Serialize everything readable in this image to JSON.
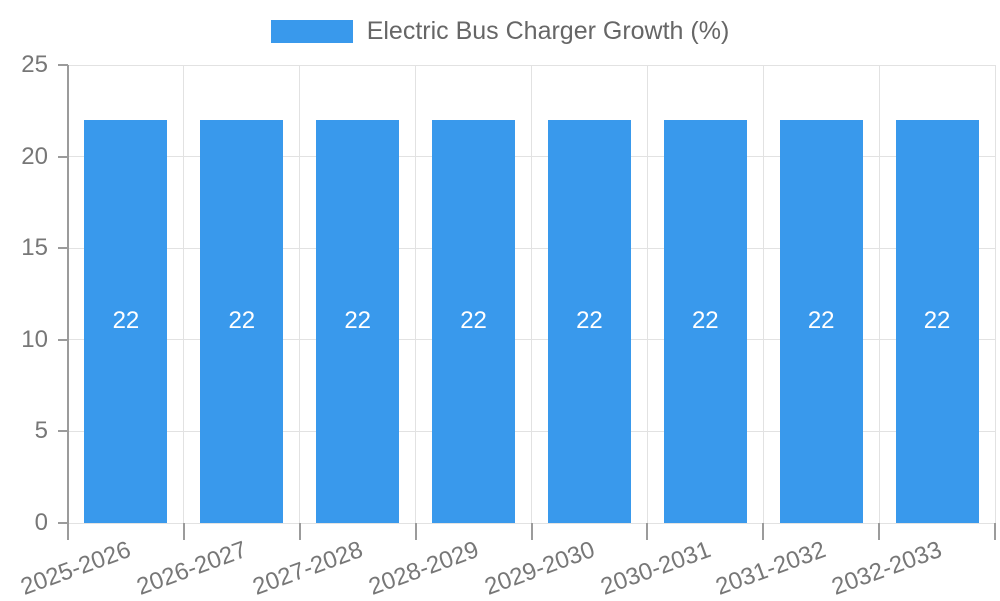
{
  "chart_data": {
    "type": "bar",
    "title": "Electric Bus Charger Growth (%)",
    "categories": [
      "2025-2026",
      "2026-2027",
      "2027-2028",
      "2028-2029",
      "2029-2030",
      "2030-2031",
      "2031-2032",
      "2032-2033"
    ],
    "values": [
      22,
      22,
      22,
      22,
      22,
      22,
      22,
      22
    ],
    "xlabel": "",
    "ylabel": "",
    "ylim": [
      0,
      25
    ],
    "yticks": [
      0,
      5,
      10,
      15,
      20,
      25
    ],
    "grid": true,
    "show_bar_values": true,
    "legend_position": "top-center"
  },
  "colors": {
    "bar": "#3999EC",
    "grid": "#E2E2E2",
    "axis": "#9B9B9B",
    "tick": "#9B9B9B",
    "axis_label": "#777777",
    "bar_value_label": "#FFFFFF",
    "legend_text": "#666666",
    "background": "#FFFFFF"
  }
}
